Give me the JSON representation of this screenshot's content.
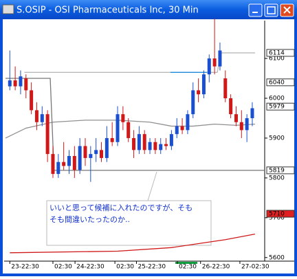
{
  "window": {
    "title": "S.OSIP - OSI Pharmaceuticals Inc, 30 Min"
  },
  "chart_data": {
    "type": "candlestick",
    "up_color": "#1a4fd0",
    "down_color": "#d01818",
    "ylim": [
      5591,
      6195
    ],
    "yticks": [
      6100,
      6000,
      5900,
      5800,
      5700,
      5600
    ],
    "xlim": [
      -0.8,
      47.3
    ],
    "xticks": [
      {
        "value": 0,
        "label": "23-22:30"
      },
      {
        "value": 8,
        "label": "02:30"
      },
      {
        "value": 12.1,
        "label": "24-22:30"
      },
      {
        "value": 19.5,
        "label": "02:30"
      },
      {
        "value": 23.5,
        "label": "25-22:30"
      },
      {
        "value": 31.1,
        "label": "02:30"
      },
      {
        "value": 35.4,
        "label": "26-22:30"
      },
      {
        "value": 42.7,
        "label": "27-02:30"
      }
    ],
    "candles": [
      [
        6030,
        6120,
        6020,
        6045
      ],
      [
        6045,
        6080,
        6020,
        6030
      ],
      [
        6030,
        6070,
        6010,
        6055
      ],
      [
        6050,
        6060,
        6000,
        6020
      ],
      [
        6020,
        6040,
        5960,
        5970
      ],
      [
        5970,
        5990,
        5920,
        5940
      ],
      [
        5940,
        5980,
        5930,
        5960
      ],
      [
        5960,
        5970,
        5840,
        5860
      ],
      [
        5860,
        5880,
        5800,
        5810
      ],
      [
        5810,
        5860,
        5800,
        5840
      ],
      [
        5840,
        5890,
        5820,
        5830
      ],
      [
        5830,
        5870,
        5810,
        5855
      ],
      [
        5855,
        5880,
        5800,
        5820
      ],
      [
        5820,
        5900,
        5810,
        5880
      ],
      [
        5880,
        5900,
        5830,
        5850
      ],
      [
        5850,
        5880,
        5790,
        5860
      ],
      [
        5860,
        5900,
        5840,
        5870
      ],
      [
        5870,
        5890,
        5840,
        5850
      ],
      [
        5850,
        5930,
        5840,
        5900
      ],
      [
        5900,
        5940,
        5880,
        5890
      ],
      [
        5890,
        5980,
        5880,
        5960
      ],
      [
        5960,
        5980,
        5920,
        5940
      ],
      [
        5940,
        5950,
        5890,
        5900
      ],
      [
        5900,
        5920,
        5850,
        5870
      ],
      [
        5870,
        5930,
        5860,
        5910
      ],
      [
        5910,
        5920,
        5860,
        5870
      ],
      [
        5870,
        5900,
        5860,
        5890
      ],
      [
        5890,
        5900,
        5860,
        5870
      ],
      [
        5870,
        5900,
        5860,
        5885
      ],
      [
        5885,
        5900,
        5870,
        5880
      ],
      [
        5880,
        5920,
        5870,
        5910
      ],
      [
        5910,
        5950,
        5900,
        5930
      ],
      [
        5930,
        5950,
        5910,
        5920
      ],
      [
        5920,
        5970,
        5910,
        5960
      ],
      [
        5960,
        6040,
        5950,
        6020
      ],
      [
        6020,
        6050,
        5990,
        6010
      ],
      [
        6010,
        6070,
        6000,
        6060
      ],
      [
        6060,
        6110,
        6040,
        6100
      ],
      [
        6100,
        6200,
        6060,
        6080
      ],
      [
        6080,
        6140,
        6070,
        6120
      ],
      [
        6050,
        6070,
        5990,
        6000
      ],
      [
        6000,
        6010,
        5950,
        5960
      ],
      [
        5960,
        5980,
        5930,
        5940
      ],
      [
        5940,
        5970,
        5900,
        5920
      ],
      [
        5920,
        5960,
        5890,
        5950
      ],
      [
        5950,
        5990,
        5930,
        5975
      ]
    ],
    "overlays": [
      {
        "color": "#909090",
        "x": [
          -0.8,
          3,
          8,
          14,
          20,
          26,
          30,
          34,
          38,
          42,
          45.5
        ],
        "values": [
          5900,
          5925,
          5940,
          5945,
          5945,
          5940,
          5930,
          5930,
          5935,
          5932,
          5935
        ]
      },
      {
        "color": "#777777",
        "x": [
          -0.8,
          7.5,
          8.2,
          47.3
        ],
        "values": [
          6050,
          6050,
          5819,
          5819
        ]
      },
      {
        "color": "#b8b8b8",
        "x": [
          2.7,
          29.8,
          38.5,
          39.2,
          45.5
        ],
        "values": [
          6065,
          6065,
          6065,
          6114,
          6114
        ]
      },
      {
        "color": "#1e8ee0",
        "x": [
          29.8,
          36.6
        ],
        "values": [
          6065,
          6065
        ]
      },
      {
        "color": "#d01818",
        "x": [
          0,
          20,
          30,
          40,
          45.5
        ],
        "values": [
          5612,
          5616,
          5625,
          5645,
          5659
        ]
      }
    ],
    "price_labels": [
      {
        "value": 6114,
        "color": "#ffffff"
      },
      {
        "value": 6040,
        "color": "#ffffff"
      },
      {
        "value": 5979,
        "color": "#ffffff"
      },
      {
        "value": 5819,
        "color": "#ffffff"
      },
      {
        "value": 5710,
        "color": "#e02020"
      }
    ],
    "annotation": [
      "いいと思って候補に入れたのですが、そも",
      "そも間違いたったのか.."
    ]
  }
}
